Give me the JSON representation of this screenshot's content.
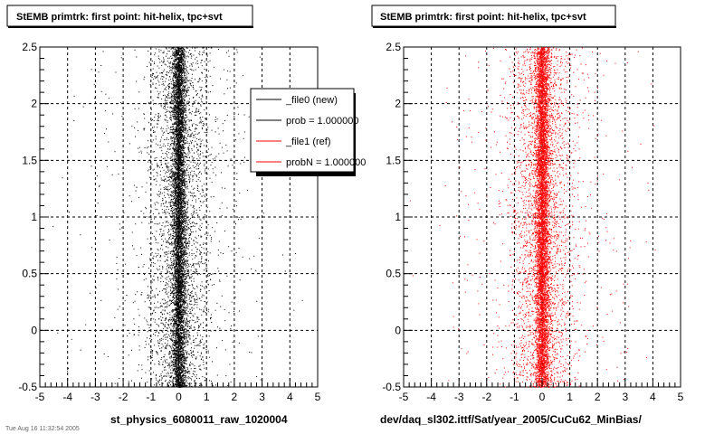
{
  "chart_data": [
    {
      "type": "scatter",
      "title": "StEMB primtrk: first point: hit-helix, tpc+svt",
      "xlabel": "st_physics_6080011_raw_1020004",
      "ylabel": "",
      "xlim": [
        -5,
        5
      ],
      "ylim": [
        -0.5,
        2.5
      ],
      "x_ticks": [
        "-5",
        "-4",
        "-3",
        "-2",
        "-1",
        "0",
        "1",
        "2",
        "3",
        "4",
        "5"
      ],
      "y_ticks": [
        "-0.5",
        "0",
        "0.5",
        "1",
        "1.5",
        "2",
        "2.5"
      ],
      "grid": true,
      "series": [
        {
          "name": "_file0 (new)",
          "color": "#000000",
          "distribution": {
            "x_center": 0.0,
            "core_sigma": 0.12,
            "halo_sigma": 0.55,
            "tail_sigma": 1.6,
            "n_points": 9000
          }
        }
      ],
      "legend": {
        "position": "top-right",
        "entries": [
          {
            "label": "_file0 (new)",
            "color": "#000000"
          },
          {
            "label": "prob = 1.000000",
            "color": "#000000"
          },
          {
            "label": "_file1 (ref)",
            "color": "#ff0000"
          },
          {
            "label": "probN = 1.000000",
            "color": "#ff0000"
          }
        ]
      }
    },
    {
      "type": "scatter",
      "title": "StEMB primtrk: first point: hit-helix, tpc+svt",
      "xlabel": "dev/daq_sl302.ittf/Sat/year_2005/CuCu62_MinBias/",
      "ylabel": "",
      "xlim": [
        -5,
        5
      ],
      "ylim": [
        -0.5,
        2.5
      ],
      "x_ticks": [
        "-5",
        "-4",
        "-3",
        "-2",
        "-1",
        "0",
        "1",
        "2",
        "3",
        "4",
        "5"
      ],
      "y_ticks": [
        "-0.5",
        "0",
        "0.5",
        "1",
        "1.5",
        "2",
        "2.5"
      ],
      "grid": true,
      "series": [
        {
          "name": "_file1 (ref)",
          "color": "#ff0000",
          "distribution": {
            "x_center": 0.0,
            "core_sigma": 0.12,
            "halo_sigma": 0.55,
            "tail_sigma": 1.6,
            "n_points": 9000
          }
        }
      ]
    }
  ],
  "footer_text": "Tue Aug 16 11:32:54 2005"
}
